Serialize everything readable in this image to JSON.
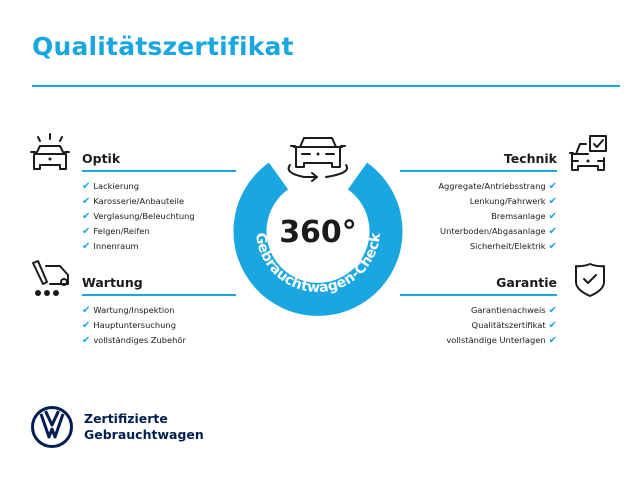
{
  "title": "Qualitätszertifikat",
  "colors": {
    "accent": "#1aa6e0",
    "brand": "#001e50",
    "text": "#1b1b1b"
  },
  "center": {
    "degrees": "360°",
    "ring_text": "Gebrauchtwagen-Check",
    "icon": "car-rotate-icon"
  },
  "sections": {
    "optik": {
      "heading": "Optik",
      "icon": "car-lights-icon",
      "items": [
        "Lackierung",
        "Karosserie/Anbauteile",
        "Verglasung/Beleuchtung",
        "Felgen/Reifen",
        "Innenraum"
      ]
    },
    "wartung": {
      "heading": "Wartung",
      "icon": "service-truck-icon",
      "items": [
        "Wartung/Inspektion",
        "Hauptuntersuchung",
        "vollständiges Zubehör"
      ]
    },
    "technik": {
      "heading": "Technik",
      "icon": "car-checkbox-icon",
      "items": [
        "Aggregate/Antriebsstrang",
        "Lenkung/Fahrwerk",
        "Bremsanlage",
        "Unterboden/Abgasanlage",
        "Sicherheit/Elektrik"
      ]
    },
    "garantie": {
      "heading": "Garantie",
      "icon": "shield-check-icon",
      "items": [
        "Garantienachweis",
        "Qualitätszertifikat",
        "vollständige Unterlagen"
      ]
    }
  },
  "check_mark": "✔",
  "footer": {
    "line1": "Zertifizierte",
    "line2": "Gebrauchtwagen",
    "logo": "vw-logo"
  }
}
